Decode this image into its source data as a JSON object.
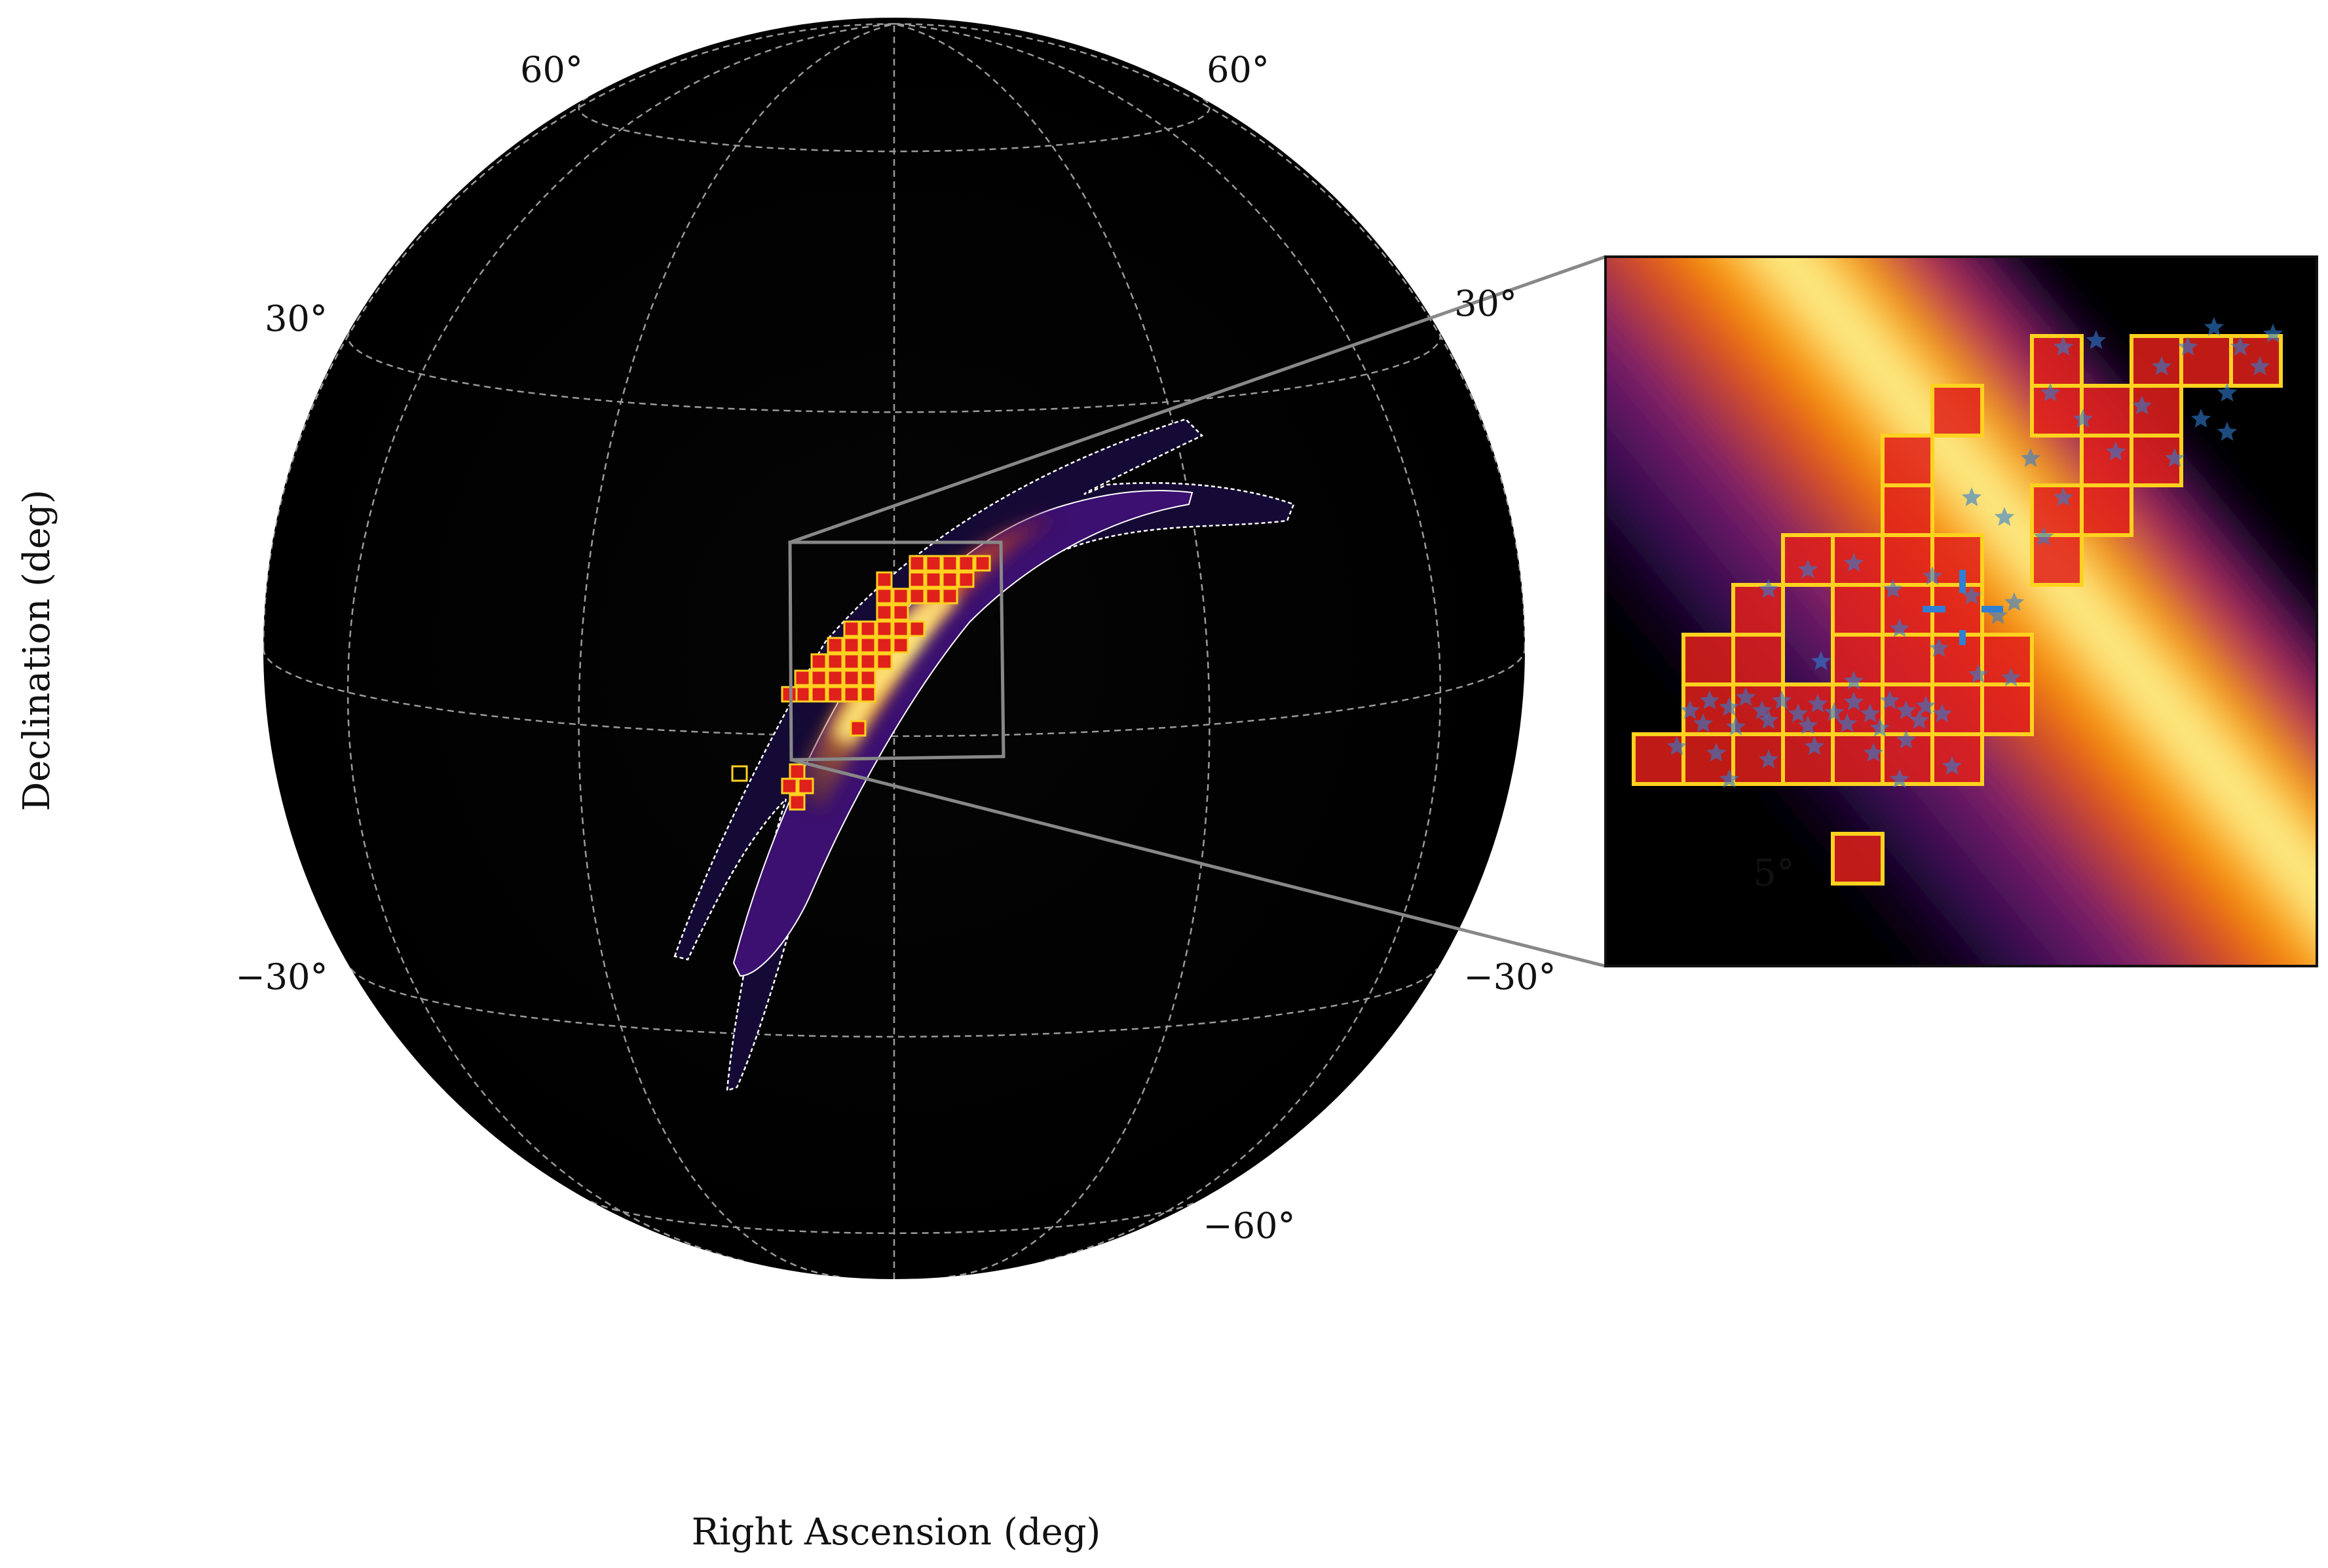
{
  "chart_data": {
    "type": "heatmap",
    "projection": "orthographic",
    "xlabel": "Right Ascension (deg)",
    "ylabel": "Declination (deg)",
    "grid": true,
    "colormap": "inferno",
    "lat_tick_labels": [
      {
        "label": "60°",
        "lat": 60,
        "side": "left"
      },
      {
        "label": "60°",
        "lat": 60,
        "side": "right"
      },
      {
        "label": "30°",
        "lat": 30,
        "side": "left"
      },
      {
        "label": "30°",
        "lat": 30,
        "side": "right"
      },
      {
        "label": "−30°",
        "lat": -30,
        "side": "left"
      },
      {
        "label": "−30°",
        "lat": -30,
        "side": "right"
      },
      {
        "label": "−60°",
        "lat": -60,
        "side": "right"
      }
    ],
    "inset": {
      "scale_bar_label": "5°",
      "scale_bar_deg": 5
    },
    "colors": {
      "background": "#000000",
      "grid": "#9a9a9a",
      "contour": "#ffffff",
      "tile_edge": "#ffd21f",
      "tile_fill": "#e0201a",
      "marker": "#2f7fd4",
      "zoom_box": "#888888"
    }
  }
}
